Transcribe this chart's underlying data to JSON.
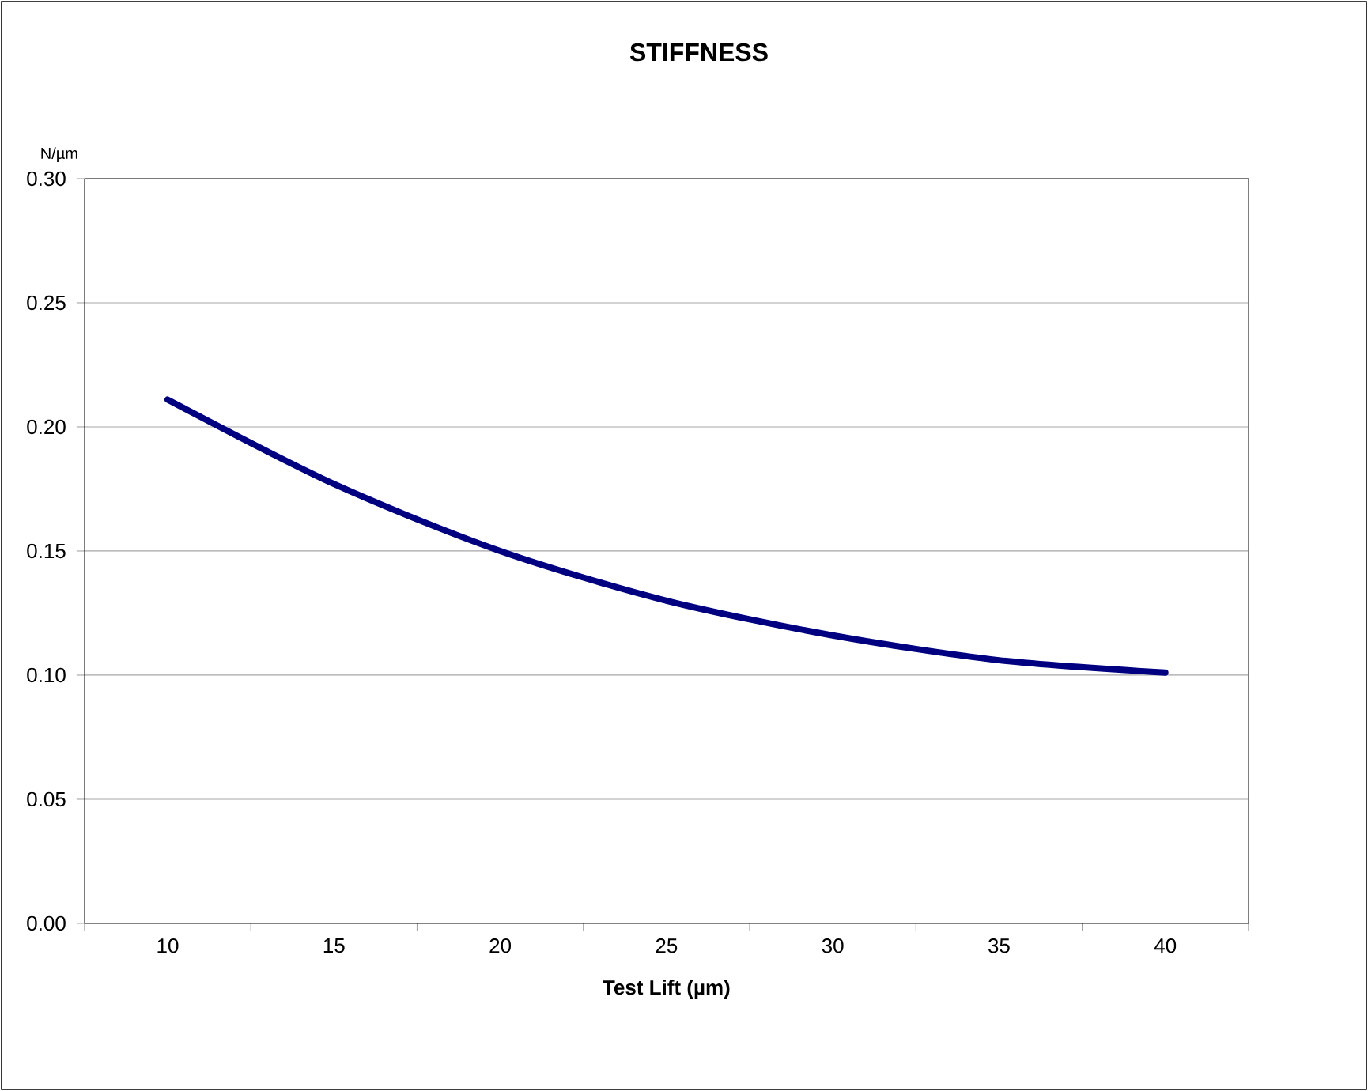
{
  "chart_data": {
    "type": "line",
    "title": "STIFFNESS",
    "xlabel": "Test Lift (µm)",
    "ylabel": "N/µm",
    "categories": [
      "10",
      "15",
      "20",
      "25",
      "30",
      "35",
      "40"
    ],
    "series": [
      {
        "color": "#000080",
        "values": [
          0.211,
          0.177,
          0.15,
          0.13,
          0.116,
          0.106,
          0.101
        ]
      }
    ],
    "ylim": [
      0,
      0.3
    ],
    "yticks": [
      {
        "value": 0,
        "label": "0.00"
      },
      {
        "value": 0.05,
        "label": "0.05"
      },
      {
        "value": 0.1,
        "label": "0.10"
      },
      {
        "value": 0.15,
        "label": "0.15"
      },
      {
        "value": 0.2,
        "label": "0.20"
      },
      {
        "value": 0.25,
        "label": "0.25"
      },
      {
        "value": 0.3,
        "label": "0.30"
      }
    ],
    "grid": "y",
    "marker": "none",
    "line_style": "solid"
  }
}
